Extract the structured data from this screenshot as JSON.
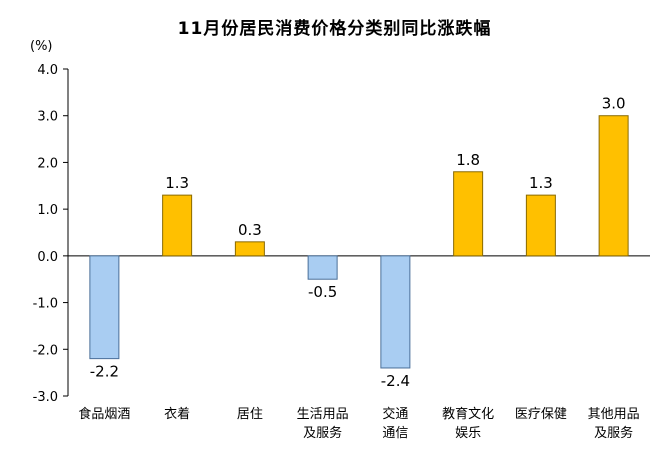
{
  "chart_data": {
    "type": "bar",
    "title": "11月份居民消费价格分类别同比涨跌幅",
    "ylabel": "(%)",
    "categories": [
      [
        "食品烟酒"
      ],
      [
        "衣着"
      ],
      [
        "居住"
      ],
      [
        "生活用品",
        "及服务"
      ],
      [
        "交通",
        "通信"
      ],
      [
        "教育文化",
        "娱乐"
      ],
      [
        "医疗保健"
      ],
      [
        "其他用品",
        "及服务"
      ]
    ],
    "values": [
      -2.2,
      1.3,
      0.3,
      -0.5,
      -2.4,
      1.8,
      1.3,
      3.0
    ],
    "data_labels": [
      "-2.2",
      "1.3",
      "0.3",
      "-0.5",
      "-2.4",
      "1.8",
      "1.3",
      "3.0"
    ],
    "ylim": [
      -3.0,
      4.0
    ],
    "yticks": [
      "4.0",
      "3.0",
      "2.0",
      "1.0",
      "0.0",
      "-1.0",
      "-2.0",
      "-3.0"
    ],
    "ytick_values": [
      4.0,
      3.0,
      2.0,
      1.0,
      0.0,
      -1.0,
      -2.0,
      -3.0
    ],
    "grid": false,
    "legend": "none",
    "colors": {
      "positive_fill": "#FFC000",
      "positive_stroke": "#8a6a00",
      "negative_fill": "#A9CDF2",
      "negative_stroke": "#4a6f99",
      "axis": "#000000"
    }
  }
}
